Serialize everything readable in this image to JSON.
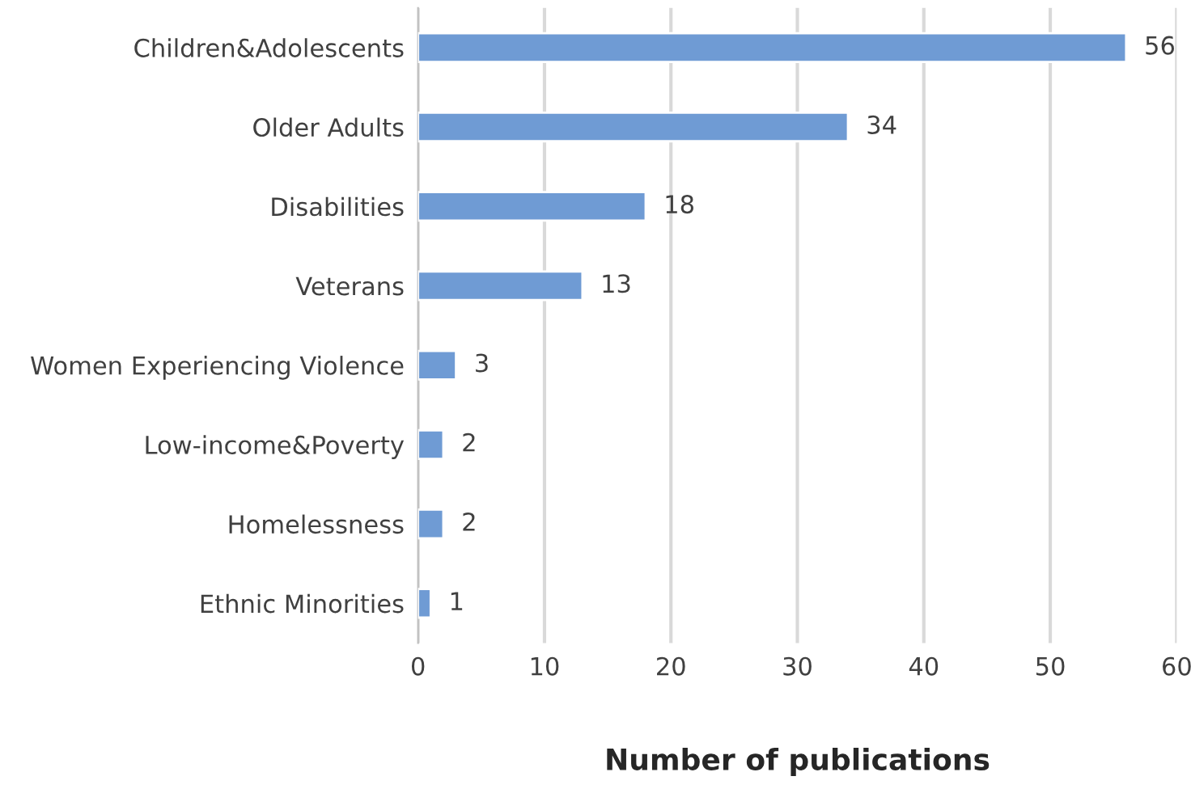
{
  "chart_data": {
    "type": "bar",
    "orientation": "horizontal",
    "xlabel": "Number of publications",
    "categories": [
      "Children&Adolescents",
      "Older Adults",
      "Disabilities",
      "Veterans",
      "Women Experiencing Violence",
      "Low-income&Poverty",
      "Homelessness",
      "Ethnic Minorities"
    ],
    "values": [
      56,
      34,
      18,
      13,
      3,
      2,
      2,
      1
    ],
    "color": "#6f9bd4",
    "xlim": [
      0,
      60
    ],
    "xticks": [
      0,
      10,
      20,
      30,
      40,
      50,
      60
    ],
    "grid": "x",
    "data_labels": true
  }
}
